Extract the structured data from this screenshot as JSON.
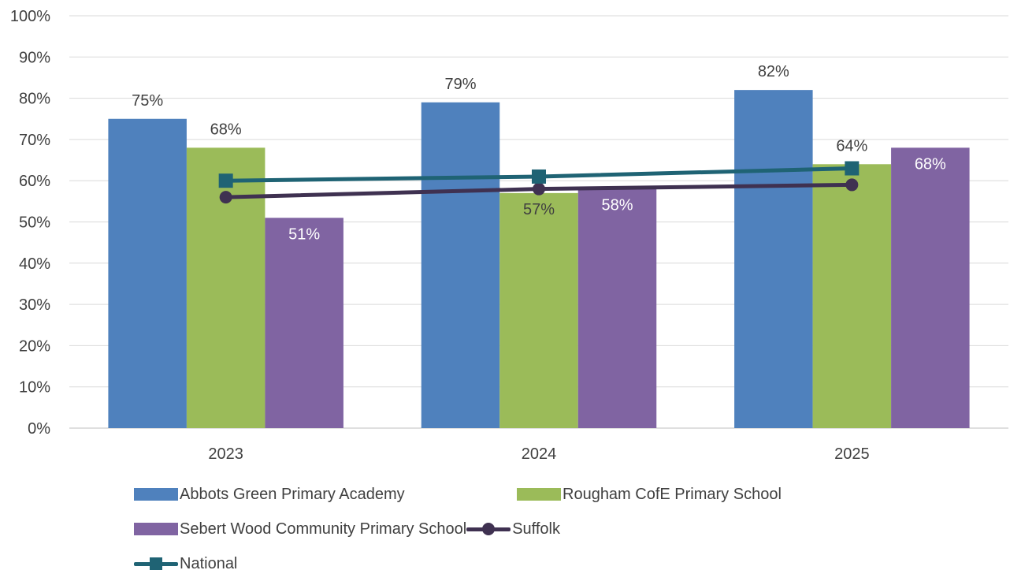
{
  "chart_data": {
    "type": "bar",
    "categories": [
      "2023",
      "2024",
      "2025"
    ],
    "y_ticks": [
      "0%",
      "10%",
      "20%",
      "30%",
      "40%",
      "50%",
      "60%",
      "70%",
      "80%",
      "90%",
      "100%"
    ],
    "ylim": [
      0,
      100
    ],
    "grid": true,
    "legend_position": "bottom",
    "series": [
      {
        "name": "Abbots Green Primary Academy",
        "kind": "bar",
        "color": "#4f81bd",
        "values": [
          75,
          79,
          82
        ],
        "labels": [
          "75%",
          "79%",
          "82%"
        ],
        "label_color": "#404040"
      },
      {
        "name": "Rougham CofE Primary School",
        "kind": "bar",
        "color": "#9bbb59",
        "values": [
          68,
          57,
          64
        ],
        "labels": [
          "68%",
          "57%",
          "64%"
        ],
        "label_color": "#404040"
      },
      {
        "name": "Sebert Wood Community Primary School",
        "kind": "bar",
        "color": "#8064a2",
        "values": [
          51,
          58,
          68
        ],
        "labels": [
          "51%",
          "58%",
          "68%"
        ],
        "label_color": "#ffffff"
      },
      {
        "name": "Suffolk",
        "kind": "line",
        "marker": "circle",
        "color": "#3f3151",
        "values": [
          56,
          58,
          59
        ]
      },
      {
        "name": "National",
        "kind": "line",
        "marker": "square",
        "color": "#1f6374",
        "values": [
          60,
          61,
          63
        ]
      }
    ]
  }
}
